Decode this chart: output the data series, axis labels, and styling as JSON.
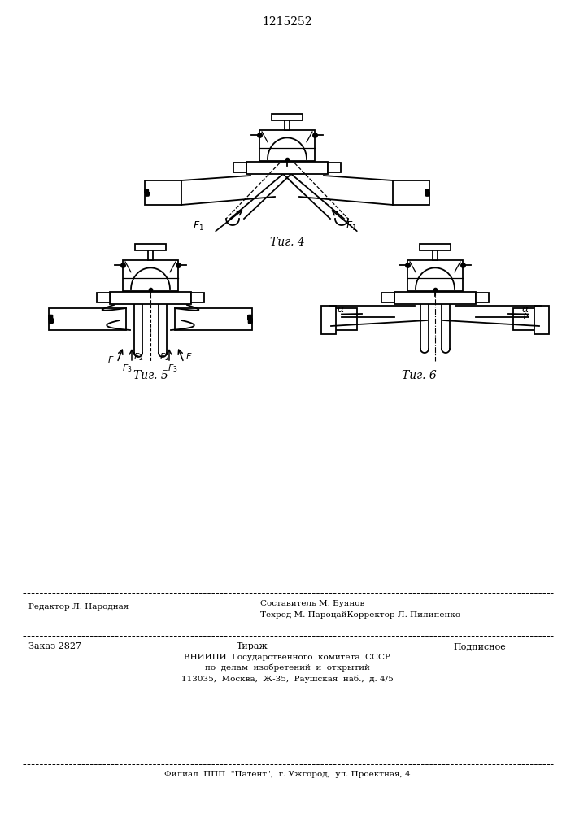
{
  "title": "1215252",
  "bg_color": "#ffffff",
  "line_color": "#000000",
  "fig4_label": "Τиг. 4",
  "fig5_label": "Τиг. 5",
  "fig6_label": "Τиг. 6",
  "editor_line1": "Редактор Л. Народная",
  "editor_line2": "Составитель М. Буянов",
  "editor_line3": "Техред М. ПароцайКорректор Л. Пилипенко",
  "order_line1": "Заказ 2827",
  "order_line2": "Тираж",
  "order_line3": "Подписное",
  "order_line4": "ВНИИПИ  Государственного  комитета  СССР",
  "order_line5": "по  делам  изобретений  и  открытий",
  "order_line6": "113035,  Москва,  Ж-35,  Раушская  наб.,  д. 4/5",
  "order_line7": "Филиал  ППП  \"Патент\",  г. Ужгород,  ул. Проектная, 4"
}
